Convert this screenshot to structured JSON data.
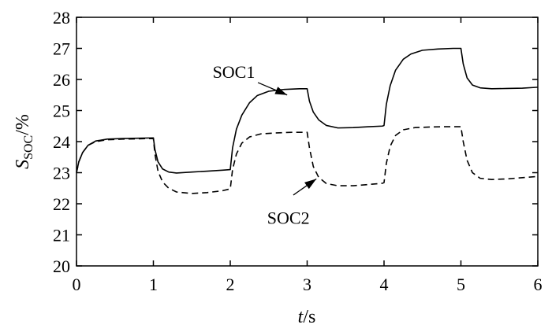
{
  "chart_data": {
    "type": "line",
    "title": "",
    "xlabel_italic": "t",
    "xlabel_unit": "/s",
    "ylabel_main": "S",
    "ylabel_sub": "SOC",
    "ylabel_unit": "/%",
    "xlim": [
      0,
      6
    ],
    "ylim": [
      20,
      28
    ],
    "xticks": [
      0,
      1,
      2,
      3,
      4,
      5,
      6
    ],
    "yticks": [
      20,
      21,
      22,
      23,
      24,
      25,
      26,
      27,
      28
    ],
    "grid": false,
    "legend": "none",
    "series": [
      {
        "name": "SOC1",
        "style": "solid",
        "x": [
          0,
          0.03,
          0.08,
          0.15,
          0.25,
          0.4,
          0.6,
          0.8,
          1.0,
          1.02,
          1.06,
          1.12,
          1.2,
          1.3,
          1.5,
          1.7,
          1.9,
          2.0,
          2.03,
          2.08,
          2.15,
          2.25,
          2.35,
          2.5,
          2.7,
          2.9,
          2.98,
          3.0,
          3.03,
          3.08,
          3.15,
          3.25,
          3.4,
          3.6,
          3.8,
          3.98,
          4.0,
          4.03,
          4.08,
          4.15,
          4.25,
          4.35,
          4.5,
          4.7,
          4.9,
          4.98,
          5.0,
          5.03,
          5.08,
          5.15,
          5.25,
          5.4,
          5.6,
          5.8,
          6.0
        ],
        "values": [
          23.0,
          23.35,
          23.65,
          23.88,
          24.02,
          24.08,
          24.1,
          24.11,
          24.12,
          23.75,
          23.35,
          23.12,
          23.02,
          22.99,
          23.02,
          23.05,
          23.08,
          23.1,
          23.8,
          24.4,
          24.85,
          25.25,
          25.48,
          25.62,
          25.68,
          25.7,
          25.7,
          25.7,
          25.3,
          24.95,
          24.7,
          24.52,
          24.44,
          24.45,
          24.48,
          24.5,
          24.52,
          25.2,
          25.8,
          26.3,
          26.65,
          26.82,
          26.94,
          26.98,
          27.0,
          27.0,
          27.0,
          26.5,
          26.05,
          25.82,
          25.73,
          25.7,
          25.71,
          25.72,
          25.75
        ]
      },
      {
        "name": "SOC2",
        "style": "dashed",
        "x": [
          0,
          0.03,
          0.08,
          0.15,
          0.25,
          0.4,
          0.6,
          0.8,
          1.0,
          1.02,
          1.06,
          1.12,
          1.2,
          1.3,
          1.5,
          1.7,
          1.9,
          2.0,
          2.03,
          2.08,
          2.15,
          2.25,
          2.4,
          2.6,
          2.8,
          2.98,
          3.0,
          3.03,
          3.08,
          3.15,
          3.25,
          3.4,
          3.6,
          3.8,
          3.98,
          4.0,
          4.03,
          4.08,
          4.15,
          4.25,
          4.4,
          4.6,
          4.8,
          4.98,
          5.0,
          5.03,
          5.08,
          5.15,
          5.25,
          5.4,
          5.6,
          5.8,
          6.0
        ],
        "values": [
          23.0,
          23.35,
          23.65,
          23.88,
          24.0,
          24.06,
          24.08,
          24.09,
          24.1,
          23.6,
          23.05,
          22.7,
          22.5,
          22.38,
          22.33,
          22.36,
          22.42,
          22.48,
          23.1,
          23.6,
          23.95,
          24.15,
          24.25,
          24.28,
          24.3,
          24.3,
          24.3,
          23.8,
          23.2,
          22.85,
          22.65,
          22.58,
          22.58,
          22.62,
          22.66,
          22.68,
          23.3,
          23.85,
          24.2,
          24.38,
          24.45,
          24.47,
          24.48,
          24.48,
          24.48,
          24.0,
          23.4,
          23.0,
          22.82,
          22.78,
          22.8,
          22.84,
          22.88
        ]
      }
    ],
    "annotations": [
      {
        "label": "SOC1",
        "text_x": 1.77,
        "text_y": 26.05,
        "arrow_from": [
          2.36,
          25.9
        ],
        "arrow_to": [
          2.74,
          25.5
        ]
      },
      {
        "label": "SOC2",
        "text_x": 2.48,
        "text_y": 21.35,
        "arrow_from": [
          2.82,
          22.28
        ],
        "arrow_to": [
          3.12,
          22.8
        ]
      }
    ]
  }
}
